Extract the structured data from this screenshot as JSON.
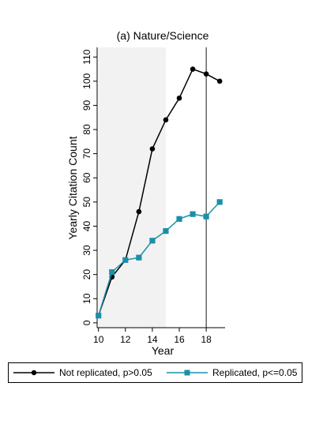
{
  "chart_data": {
    "type": "line",
    "title": "(a) Nature/Science",
    "xlabel": "Year",
    "ylabel": "Yearly Citation Count",
    "xlim": [
      9.9,
      19.4
    ],
    "ylim": [
      -2,
      114
    ],
    "x_ticks": [
      10,
      12,
      14,
      16,
      18
    ],
    "y_ticks": [
      0,
      10,
      20,
      30,
      40,
      50,
      60,
      70,
      80,
      90,
      100,
      110
    ],
    "shaded_region": {
      "x_start": 10,
      "x_end": 15,
      "color": "#f2f2f2"
    },
    "vertical_line": {
      "x": 18,
      "color": "#000000"
    },
    "grid": false,
    "legend_position": "bottom",
    "series": [
      {
        "name": "Not replicated, p>0.05",
        "color": "#000000",
        "marker": "circle",
        "x": [
          10,
          11,
          12,
          13,
          14,
          15,
          16,
          17,
          18,
          19
        ],
        "values": [
          3,
          19,
          26,
          46,
          72,
          84,
          93,
          105,
          103,
          100
        ]
      },
      {
        "name": "Replicated, p<=0.05",
        "color": "#1b8fa8",
        "marker": "square",
        "x": [
          10,
          11,
          12,
          13,
          14,
          15,
          16,
          17,
          18,
          19
        ],
        "values": [
          3,
          21,
          26,
          27,
          34,
          38,
          43,
          45,
          44,
          50
        ]
      }
    ]
  }
}
